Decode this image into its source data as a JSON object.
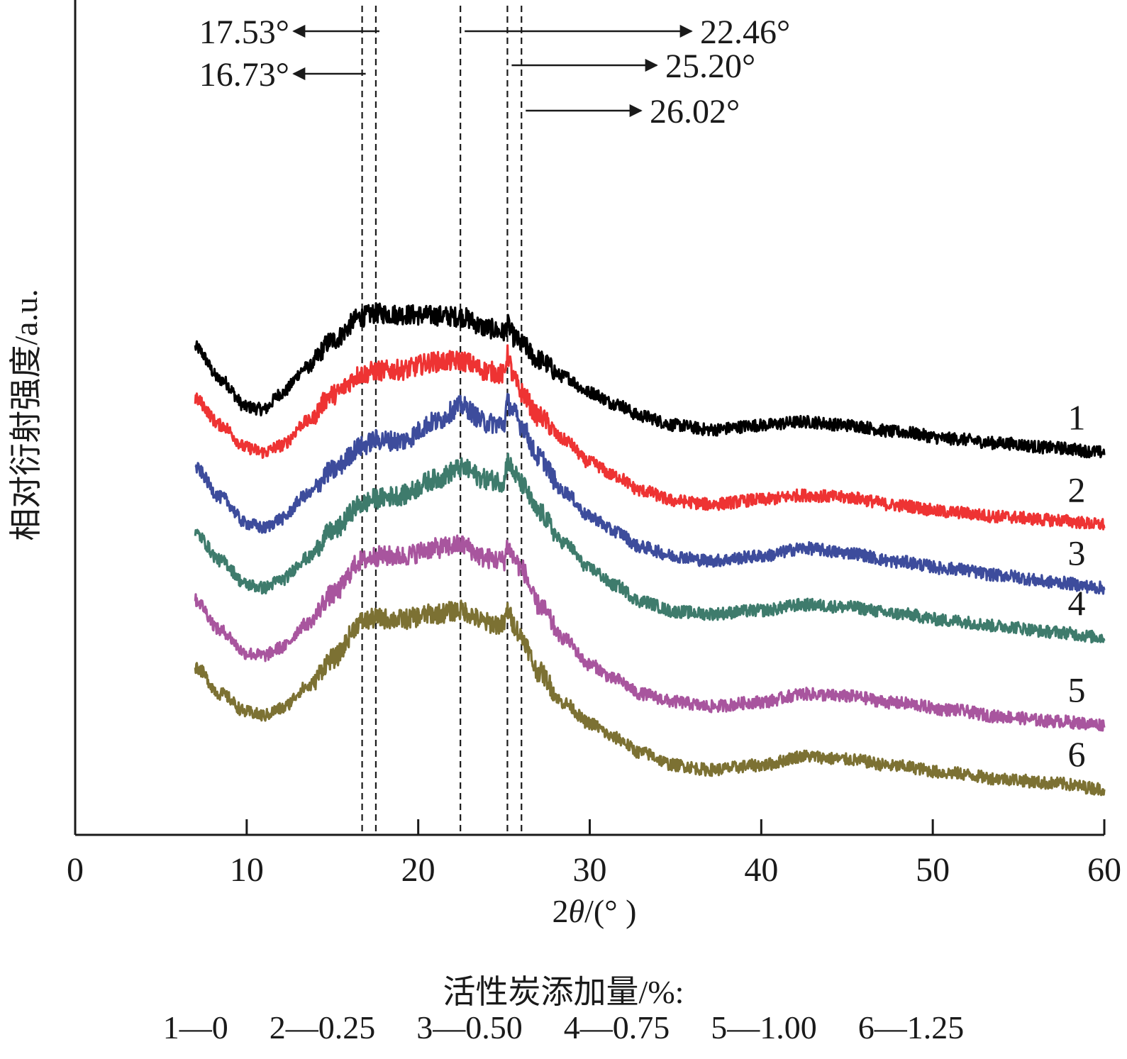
{
  "chart_data": {
    "type": "line",
    "title": "",
    "xlabel_prefix": "2",
    "xlabel_theta": "θ",
    "xlabel_suffix": "/(° )",
    "ylabel": "相对衍射强度/a.u.",
    "xlim": [
      0,
      60
    ],
    "x_ticks": [
      0,
      10,
      20,
      30,
      40,
      50,
      60
    ],
    "y_tick_labels_shown": false,
    "grid": false,
    "x_range_of_data": [
      7,
      60
    ],
    "peak_markers": [
      {
        "x": 17.53,
        "label": "17.53°",
        "arrow": "left"
      },
      {
        "x": 16.73,
        "label": "16.73°",
        "arrow": "left"
      },
      {
        "x": 22.46,
        "label": "22.46°",
        "arrow": "right"
      },
      {
        "x": 25.2,
        "label": "25.20°",
        "arrow": "right"
      },
      {
        "x": 26.02,
        "label": "26.02°",
        "arrow": "right"
      }
    ],
    "series": [
      {
        "name": "1",
        "color": "#000000",
        "x": [
          7,
          8.5,
          10,
          11,
          12,
          13.5,
          15,
          16.7,
          17.5,
          19,
          21,
          22.5,
          24,
          25,
          25.2,
          25.6,
          26,
          27,
          28.5,
          30,
          31.5,
          33,
          35,
          37,
          40,
          42.5,
          45,
          48,
          51,
          54,
          57,
          60
        ],
        "y": [
          26.1,
          23.2,
          20.8,
          20.6,
          22.0,
          24.3,
          26.7,
          28.8,
          29.1,
          29.0,
          28.9,
          28.8,
          27.8,
          27.4,
          28.1,
          27.0,
          26.4,
          25.0,
          23.5,
          22.1,
          21.1,
          20.0,
          19.2,
          18.8,
          19.2,
          19.5,
          19.2,
          18.6,
          18.0,
          17.6,
          17.2,
          16.8
        ]
      },
      {
        "name": "2",
        "color": "#ee3333",
        "x": [
          7,
          8.5,
          10,
          11,
          12,
          13.5,
          15,
          16.7,
          17.5,
          19,
          21,
          22.5,
          24,
          25,
          25.2,
          25.6,
          26,
          27,
          28.5,
          30,
          31.5,
          33,
          35,
          37,
          40,
          42.5,
          45,
          48,
          51,
          54,
          57,
          60
        ],
        "y": [
          21.5,
          19.2,
          17.2,
          16.8,
          17.4,
          19.5,
          21.9,
          23.7,
          24.0,
          24.1,
          24.8,
          24.9,
          24.0,
          23.7,
          25.4,
          23.2,
          22.1,
          20.0,
          17.9,
          15.9,
          14.7,
          13.4,
          12.5,
          12.2,
          12.6,
          13.0,
          12.8,
          12.1,
          11.5,
          11.1,
          10.8,
          10.4
        ]
      },
      {
        "name": "3",
        "color": "#3d4c9c",
        "x": [
          7,
          8.5,
          10,
          11,
          12,
          13.5,
          15,
          16.7,
          17.5,
          19,
          21,
          22.5,
          24,
          25,
          25.2,
          25.6,
          26,
          27,
          28.5,
          30,
          31.5,
          33,
          35,
          37,
          40,
          42.5,
          45,
          48,
          51,
          54,
          57,
          60
        ],
        "y": [
          15.4,
          12.8,
          10.5,
          10.1,
          10.9,
          13.0,
          15.2,
          17.3,
          17.9,
          17.8,
          19.5,
          20.9,
          19.4,
          19.3,
          21.2,
          20.3,
          19.2,
          16.4,
          13.3,
          11.1,
          9.8,
          8.4,
          7.6,
          7.2,
          7.6,
          8.3,
          7.9,
          7.1,
          6.5,
          5.9,
          5.3,
          4.8
        ]
      },
      {
        "name": "4",
        "color": "#3e7b6c",
        "x": [
          7,
          8.5,
          10,
          11,
          12,
          13.5,
          15,
          16.7,
          17.5,
          19,
          21,
          22.5,
          24,
          25,
          25.2,
          25.6,
          26,
          27,
          28.5,
          30,
          31.5,
          33,
          35,
          37,
          40,
          42.5,
          45,
          48,
          51,
          54,
          57,
          60
        ],
        "y": [
          9.6,
          7.2,
          5.1,
          4.8,
          5.5,
          7.4,
          9.8,
          12.2,
          12.7,
          13.0,
          14.4,
          15.4,
          14.4,
          14.2,
          16.1,
          14.9,
          14.0,
          11.5,
          8.8,
          6.5,
          5.0,
          3.6,
          2.7,
          2.5,
          2.8,
          3.3,
          3.1,
          2.5,
          1.9,
          1.4,
          0.9,
          0.4
        ]
      },
      {
        "name": "5",
        "color": "#a8559e",
        "x": [
          7,
          8.5,
          10,
          11,
          12,
          13.5,
          15,
          16.7,
          17.5,
          19,
          21,
          22.5,
          24,
          25,
          25.2,
          25.6,
          26,
          27,
          28.5,
          30,
          31.5,
          33,
          35,
          37,
          40,
          42.5,
          45,
          48,
          51,
          54,
          57,
          60
        ],
        "y": [
          3.7,
          1.0,
          -1.0,
          -1.2,
          -0.5,
          1.6,
          4.2,
          7.2,
          7.6,
          7.6,
          8.3,
          8.6,
          7.4,
          7.2,
          8.5,
          7.4,
          6.5,
          3.3,
          0.3,
          -2.0,
          -3.3,
          -4.6,
          -5.3,
          -5.7,
          -5.3,
          -4.6,
          -4.8,
          -5.4,
          -6.0,
          -6.6,
          -7.0,
          -7.3
        ]
      },
      {
        "name": "6",
        "color": "#7c7133",
        "x": [
          7,
          8.5,
          10,
          11,
          12,
          13.5,
          15,
          16.7,
          17.5,
          19,
          21,
          22.5,
          24,
          25,
          25.2,
          25.6,
          26,
          27,
          28.5,
          30,
          31.5,
          33,
          35,
          37,
          40,
          42.5,
          45,
          48,
          51,
          54,
          57,
          60
        ],
        "y": [
          -2.2,
          -4.6,
          -6.2,
          -6.5,
          -5.9,
          -4.0,
          -1.5,
          1.8,
          2.1,
          2.0,
          2.5,
          2.8,
          1.7,
          1.5,
          2.8,
          1.5,
          0.5,
          -2.6,
          -5.4,
          -7.2,
          -8.5,
          -9.8,
          -10.9,
          -11.3,
          -10.9,
          -10.1,
          -10.4,
          -11.0,
          -11.6,
          -12.1,
          -12.5,
          -13.0
        ]
      }
    ],
    "legend": {
      "title": "活性炭添加量/%:",
      "items": [
        "1—0",
        "2—0.25",
        "3—0.50",
        "4—0.75",
        "5—1.00",
        "6—1.25"
      ]
    }
  }
}
